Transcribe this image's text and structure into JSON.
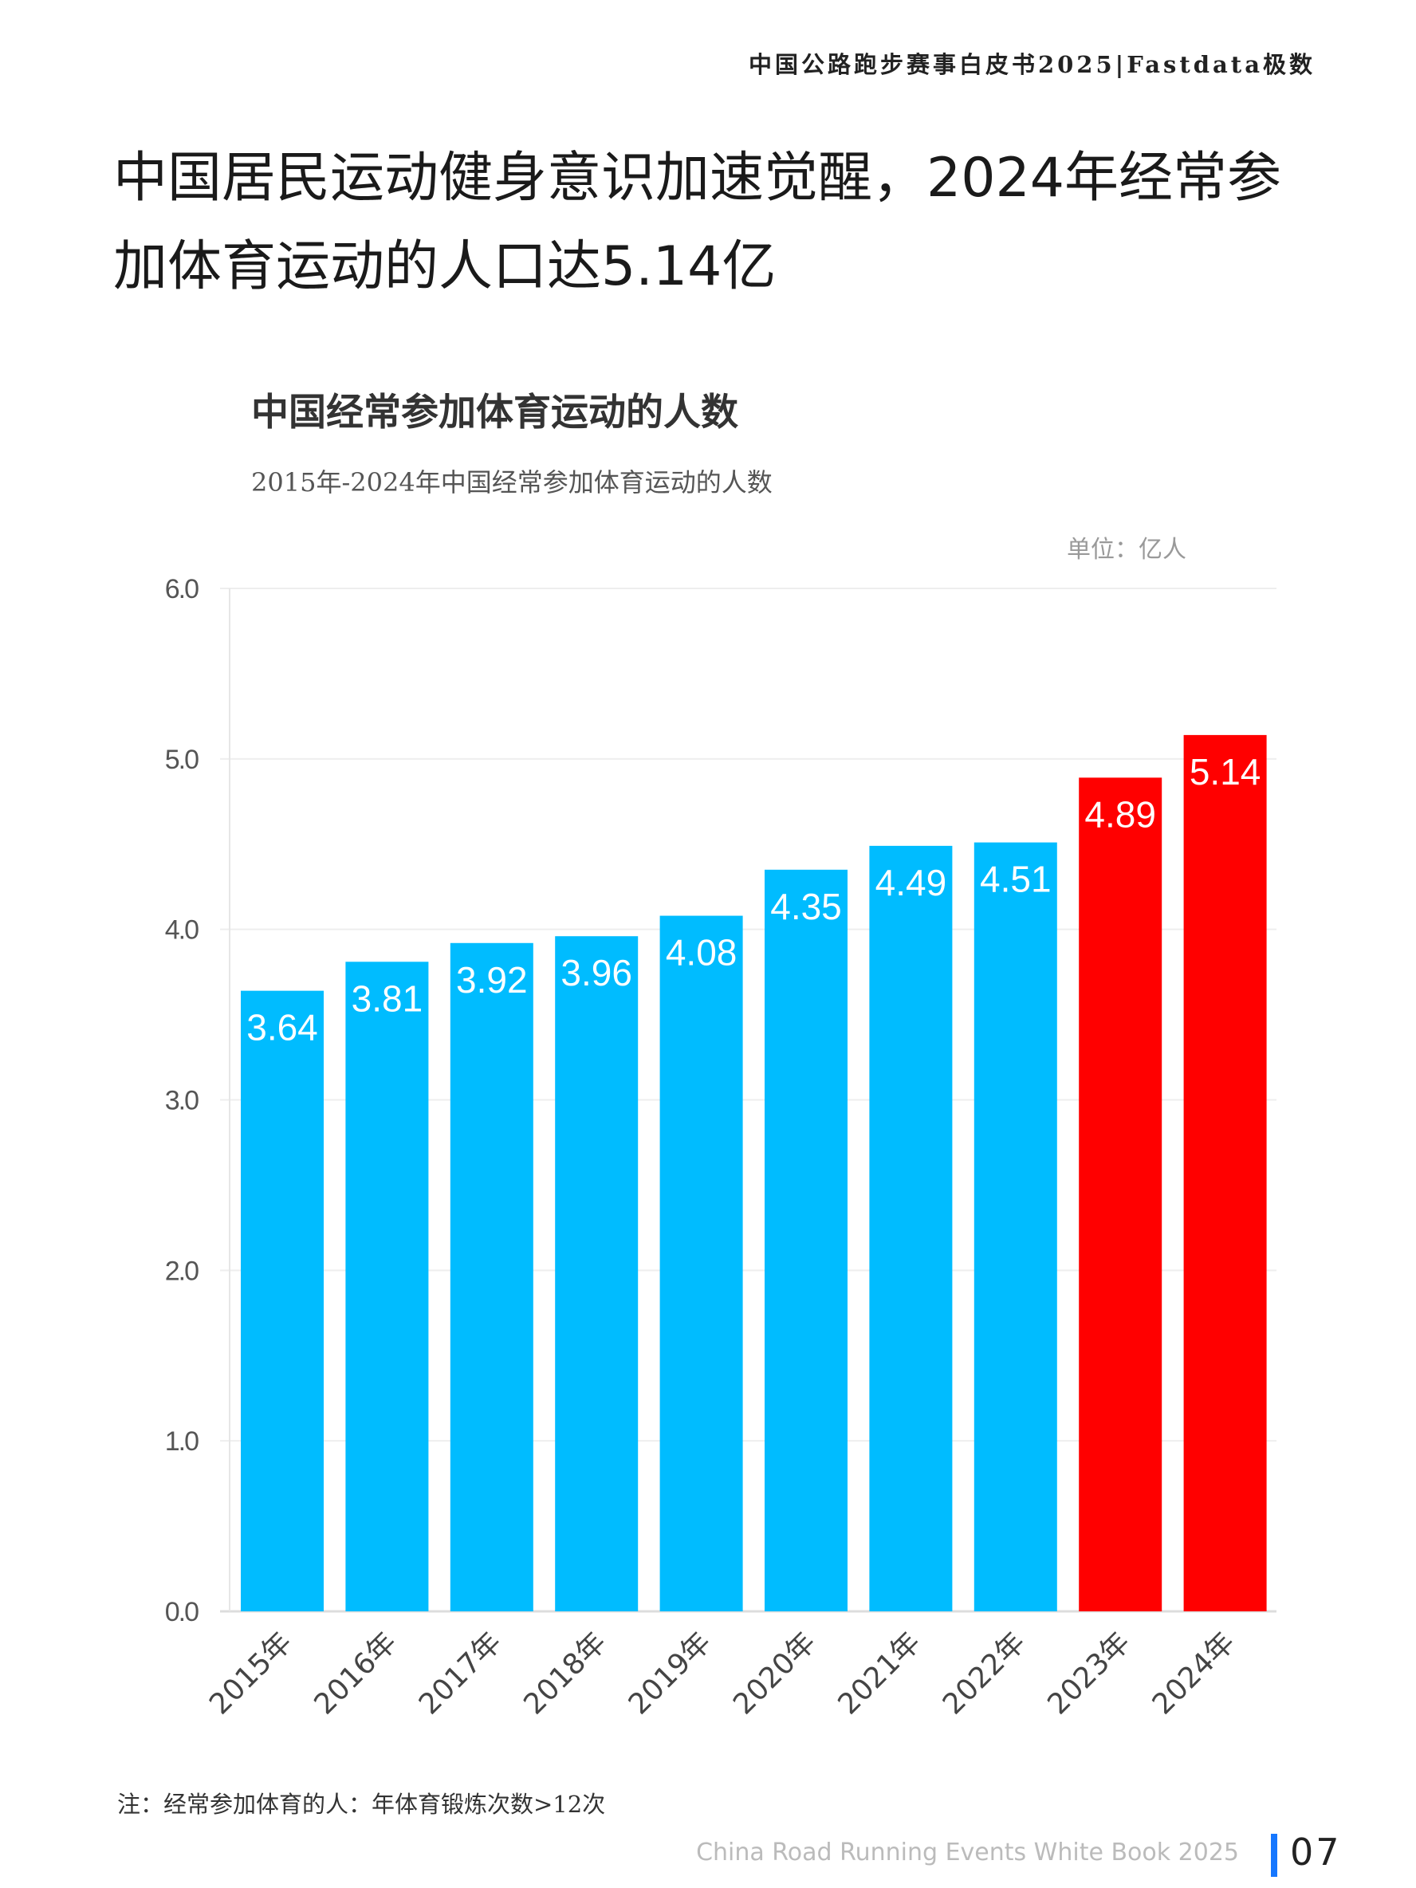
{
  "header": {
    "text": "中国公路跑步赛事白皮书2025|Fastdata极数"
  },
  "page_title": "中国居民运动健身意识加速觉醒，2024年经常参加体育运动的人口达5.14亿",
  "chart_data": {
    "type": "bar",
    "title": "中国经常参加体育运动的人数",
    "subtitle": "2015年-2024年中国经常参加体育运动的人数",
    "unit": "单位：亿人",
    "categories": [
      "2015年",
      "2016年",
      "2017年",
      "2018年",
      "2019年",
      "2020年",
      "2021年",
      "2022年",
      "2023年",
      "2024年"
    ],
    "values": [
      3.64,
      3.81,
      3.92,
      3.96,
      4.08,
      4.35,
      4.49,
      4.51,
      4.89,
      5.14
    ],
    "data_labels": [
      "3.64",
      "3.81",
      "3.92",
      "3.96",
      "4.08",
      "4.35",
      "4.49",
      "4.51",
      "4.89",
      "5.14"
    ],
    "ylim": [
      0,
      6
    ],
    "yticks": [
      "0.0",
      "1.0",
      "2.0",
      "3.0",
      "4.0",
      "5.0",
      "6.0"
    ],
    "grid": true,
    "colors": {
      "default": "#00bcff",
      "highlight": "#ff0000"
    },
    "highlight_categories": [
      "2023年",
      "2024年"
    ]
  },
  "note": "注：经常参加体育的人：年体育锻炼次数>12次",
  "footer": {
    "text": "China Road Running Events White Book 2025",
    "page_number": "07",
    "accent": "#1677ff"
  }
}
